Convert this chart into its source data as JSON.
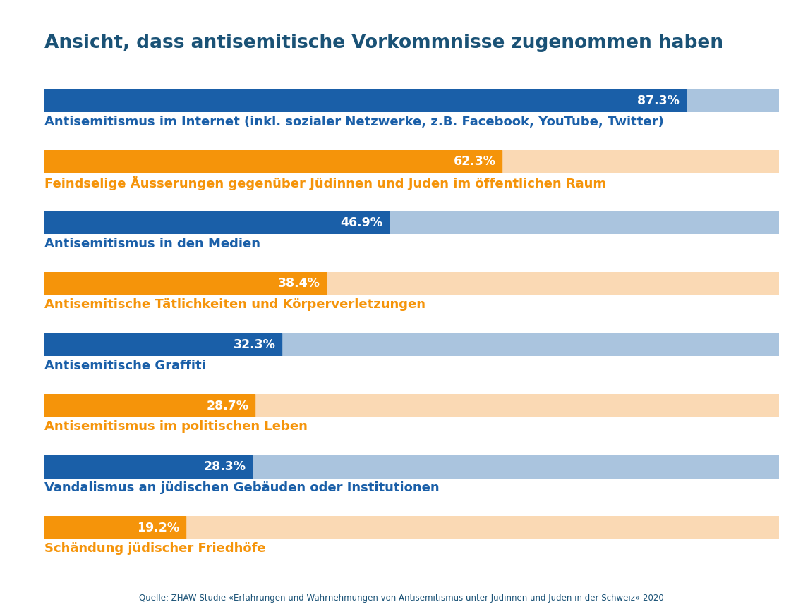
{
  "title": "Ansicht, dass antisemitische Vorkommnisse zugenommen haben",
  "title_color": "#1a5276",
  "title_fontsize": 19,
  "source_text": "Quelle: ZHAW-Studie «Erfahrungen und Wahrnehmungen von Antisemitismus unter Jüdinnen und Juden in der Schweiz» 2020",
  "source_color": "#1a5276",
  "bars": [
    {
      "value": 87.3,
      "label": "Antisemitismus im Internet (inkl. sozialer Netzwerke, z.B. Facebook, YouTube, Twitter)",
      "color_bar": "#1a5fa8",
      "color_bg": "#aac4de",
      "color_text": "#1a5fa8",
      "type": "blue"
    },
    {
      "value": 62.3,
      "label": "Feindselige Äusserungen gegenüber Jüdinnen und Juden im öffentlichen Raum",
      "color_bar": "#f5940a",
      "color_bg": "#fad9b4",
      "color_text": "#f5940a",
      "type": "orange"
    },
    {
      "value": 46.9,
      "label": "Antisemitismus in den Medien",
      "color_bar": "#1a5fa8",
      "color_bg": "#aac4de",
      "color_text": "#1a5fa8",
      "type": "blue"
    },
    {
      "value": 38.4,
      "label": "Antisemitische Tätlichkeiten und Körperverletzungen",
      "color_bar": "#f5940a",
      "color_bg": "#fad9b4",
      "color_text": "#f5940a",
      "type": "orange"
    },
    {
      "value": 32.3,
      "label": "Antisemitische Graffiti",
      "color_bar": "#1a5fa8",
      "color_bg": "#aac4de",
      "color_text": "#1a5fa8",
      "type": "blue"
    },
    {
      "value": 28.7,
      "label": "Antisemitismus im politischen Leben",
      "color_bar": "#f5940a",
      "color_bg": "#fad9b4",
      "color_text": "#f5940a",
      "type": "orange"
    },
    {
      "value": 28.3,
      "label": "Vandalismus an jüdischen Gebäuden oder Institutionen",
      "color_bar": "#1a5fa8",
      "color_bg": "#aac4de",
      "color_text": "#1a5fa8",
      "type": "blue"
    },
    {
      "value": 19.2,
      "label": "Schändung jüdischer Friedhöfe",
      "color_bar": "#f5940a",
      "color_bg": "#fad9b4",
      "color_text": "#f5940a",
      "type": "orange"
    }
  ],
  "background_color": "#ffffff",
  "max_value": 100,
  "label_fontsize": 13,
  "value_fontsize": 12.5,
  "line1_color": "#1a5276",
  "line2_color": "#7fb3d3"
}
